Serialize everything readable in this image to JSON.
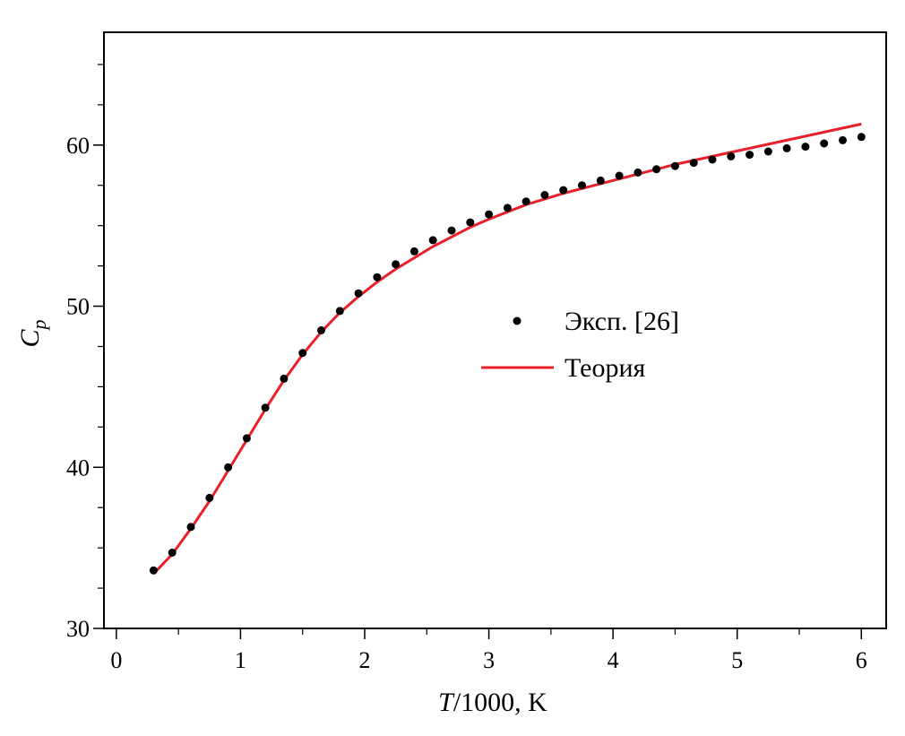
{
  "chart_data": {
    "type": "line",
    "title": "",
    "xlabel_italic": "T",
    "xlabel_rest": "/1000, K",
    "ylabel_main": "C",
    "ylabel_sub": "p",
    "xlim": [
      -0.1,
      6.2
    ],
    "ylim": [
      30,
      67
    ],
    "x_ticks": [
      0,
      1,
      2,
      3,
      4,
      5,
      6
    ],
    "y_ticks": [
      30,
      40,
      50,
      60
    ],
    "grid": false,
    "legend_position": "center-right",
    "series": [
      {
        "name": "Эксп. [26]",
        "kind": "scatter",
        "color": "#000000",
        "x": [
          0.3,
          0.45,
          0.6,
          0.75,
          0.9,
          1.05,
          1.2,
          1.35,
          1.5,
          1.65,
          1.8,
          1.95,
          2.1,
          2.25,
          2.4,
          2.55,
          2.7,
          2.85,
          3.0,
          3.15,
          3.3,
          3.45,
          3.6,
          3.75,
          3.9,
          4.05,
          4.2,
          4.35,
          4.5,
          4.65,
          4.8,
          4.95,
          5.1,
          5.25,
          5.4,
          5.55,
          5.7,
          5.85,
          6.0
        ],
        "y": [
          33.6,
          34.7,
          36.3,
          38.1,
          40.0,
          41.8,
          43.7,
          45.5,
          47.1,
          48.5,
          49.7,
          50.8,
          51.8,
          52.6,
          53.4,
          54.1,
          54.7,
          55.2,
          55.7,
          56.1,
          56.5,
          56.9,
          57.2,
          57.5,
          57.8,
          58.1,
          58.3,
          58.5,
          58.7,
          58.9,
          59.1,
          59.3,
          59.4,
          59.6,
          59.8,
          59.9,
          60.1,
          60.3,
          60.5
        ]
      },
      {
        "name": "Теория",
        "kind": "line",
        "color": "#e8202a",
        "x": [
          0.3,
          0.45,
          0.6,
          0.75,
          0.9,
          1.05,
          1.2,
          1.35,
          1.5,
          1.65,
          1.8,
          1.95,
          2.1,
          2.25,
          2.4,
          2.55,
          2.7,
          2.85,
          3.0,
          3.3,
          3.6,
          3.9,
          4.2,
          4.5,
          4.8,
          5.1,
          5.4,
          5.7,
          6.0
        ],
        "y": [
          33.4,
          34.6,
          36.2,
          37.9,
          39.8,
          41.7,
          43.6,
          45.4,
          47.0,
          48.4,
          49.6,
          50.6,
          51.5,
          52.3,
          53.0,
          53.7,
          54.3,
          54.9,
          55.4,
          56.3,
          57.0,
          57.6,
          58.2,
          58.8,
          59.3,
          59.8,
          60.3,
          60.8,
          61.3
        ]
      }
    ]
  }
}
